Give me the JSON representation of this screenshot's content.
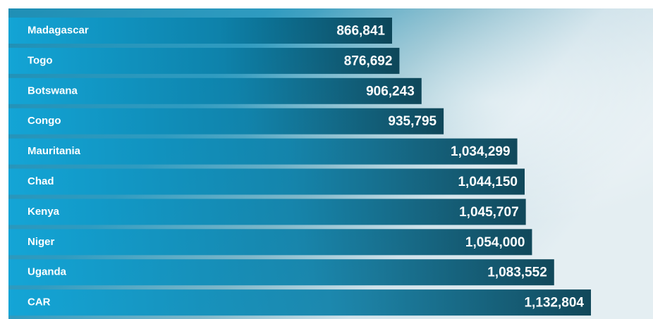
{
  "chart_data": {
    "type": "hbar",
    "categories": [
      "Madagascar",
      "Togo",
      "Botswana",
      "Congo",
      "Mauritania",
      "Chad",
      "Kenya",
      "Niger",
      "Uganda",
      "CAR"
    ],
    "values": [
      866841,
      876692,
      906243,
      935795,
      1034299,
      1044150,
      1045707,
      1054000,
      1083552,
      1132804
    ],
    "value_labels": [
      "866,841",
      "876,692",
      "906,243",
      "935,795",
      "1,034,299",
      "1,044,150",
      "1,045,707",
      "1,054,000",
      "1,083,552",
      "1,132,804"
    ]
  }
}
